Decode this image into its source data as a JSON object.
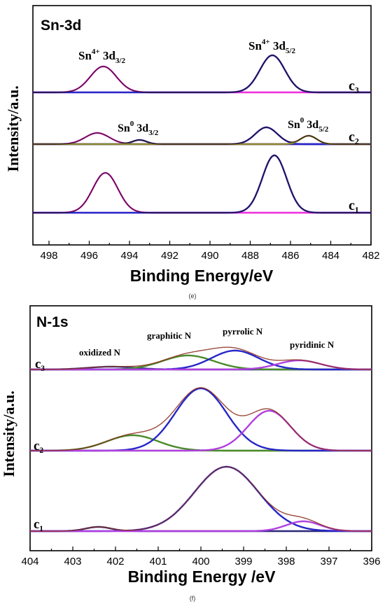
{
  "chart_data": [
    {
      "type": "line",
      "title": "Sn-3d",
      "caption": "(e)",
      "xlabel": "Binding Energy/eV",
      "ylabel": "Intensity/a.u.",
      "xlim": [
        498.8,
        482
      ],
      "xticks": [
        498,
        496,
        494,
        492,
        490,
        488,
        486,
        484,
        482
      ],
      "x_reversed": true,
      "spectra": [
        {
          "name": "c₃",
          "peaks": [
            {
              "center": 495.3,
              "height": 37,
              "width": 0.65,
              "color": "#ee33dd"
            },
            {
              "center": 486.9,
              "height": 53,
              "width": 0.62,
              "color": "#2626c8"
            }
          ]
        },
        {
          "name": "c₂",
          "peaks": [
            {
              "center": 495.6,
              "height": 16,
              "width": 0.6,
              "color": "#ee33dd"
            },
            {
              "center": 493.5,
              "height": 6,
              "width": 0.35,
              "color": "#2a2a9a"
            },
            {
              "center": 487.2,
              "height": 24,
              "width": 0.55,
              "color": "#2626c8"
            },
            {
              "center": 485.1,
              "height": 12,
              "width": 0.4,
              "color": "#8a8a2a"
            }
          ]
        },
        {
          "name": "c₁",
          "peaks": [
            {
              "center": 495.2,
              "height": 57,
              "width": 0.62,
              "color": "#ee33dd"
            },
            {
              "center": 486.8,
              "height": 82,
              "width": 0.6,
              "color": "#2626c8"
            }
          ]
        }
      ],
      "annotations": {
        "sn4_32": {
          "base": "Sn",
          "sup": "4+",
          "mid": " 3d",
          "sub": "3/2"
        },
        "sn4_52": {
          "base": "Sn",
          "sup": "4+",
          "mid": " 3d",
          "sub": "5/2"
        },
        "sn0_32": {
          "base": "Sn",
          "sup": "0",
          "mid": " 3d",
          "sub": "3/2"
        },
        "sn0_52": {
          "base": "Sn",
          "sup": "0",
          "mid": " 3d",
          "sub": "5/2"
        }
      }
    },
    {
      "type": "line",
      "title": "N-1s",
      "caption": "(f)",
      "xlabel": "Binding Energy /eV",
      "ylabel": "Intensity/a.u.",
      "xlim": [
        404,
        396
      ],
      "xticks": [
        404,
        403,
        402,
        401,
        400,
        399,
        398,
        397,
        396
      ],
      "x_reversed": true,
      "spectra": [
        {
          "name": "c₃",
          "peaks": [
            {
              "label": "oxidized N",
              "center": 402.1,
              "height": 4,
              "width": 0.55,
              "color": "#3a3a8a"
            },
            {
              "label": "graphitic N",
              "center": 400.3,
              "height": 20,
              "width": 0.6,
              "color": "#4a8a2a"
            },
            {
              "label": "pyrrolic N",
              "center": 399.2,
              "height": 27,
              "width": 0.55,
              "color": "#2626c8"
            },
            {
              "label": "pyridinic N",
              "center": 397.7,
              "height": 13,
              "width": 0.5,
              "color": "#b040e0"
            }
          ]
        },
        {
          "name": "c₂",
          "peaks": [
            {
              "center": 401.6,
              "height": 22,
              "width": 0.6,
              "color": "#4a8a2a"
            },
            {
              "center": 400.0,
              "height": 89,
              "width": 0.6,
              "color": "#2626c8"
            },
            {
              "center": 398.4,
              "height": 57,
              "width": 0.5,
              "color": "#b040e0"
            }
          ]
        },
        {
          "name": "c₁",
          "peaks": [
            {
              "center": 402.4,
              "height": 6,
              "width": 0.3,
              "color": "#2a2a7a"
            },
            {
              "center": 399.4,
              "height": 92,
              "width": 0.75,
              "color": "#2626c8"
            },
            {
              "center": 397.6,
              "height": 14,
              "width": 0.4,
              "color": "#b040e0"
            }
          ]
        }
      ]
    }
  ]
}
